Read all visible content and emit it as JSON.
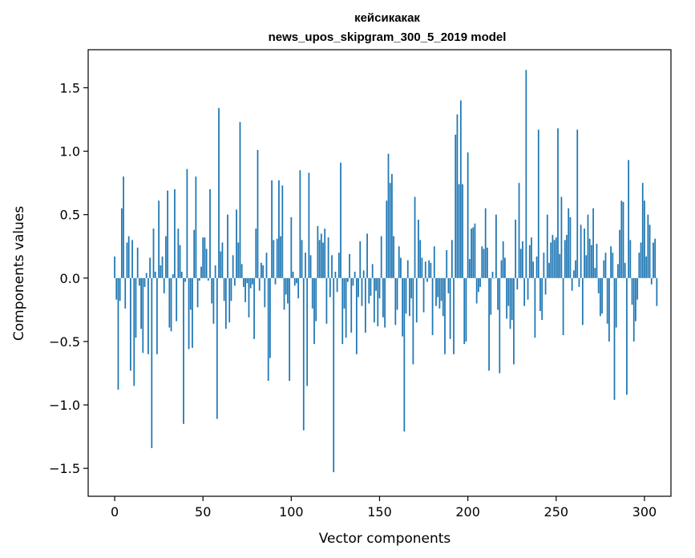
{
  "chart_data": {
    "type": "bar",
    "title": "кейсикакак",
    "subtitle": "news_upos_skipgram_300_5_2019 model",
    "xlabel": "Vector components",
    "ylabel": "Components values",
    "xlim": [
      -15,
      315
    ],
    "ylim": [
      -1.72,
      1.8
    ],
    "xticks": [
      0,
      50,
      100,
      150,
      200,
      250,
      300
    ],
    "yticks": [
      -1.5,
      -1.0,
      -0.5,
      0.0,
      0.5,
      1.0,
      1.5
    ],
    "ytick_labels": [
      "−1.5",
      "−1.0",
      "−0.5",
      "0.0",
      "0.5",
      "1.0",
      "1.5"
    ],
    "grid": false,
    "bar_color": "#1f77b4",
    "x_start": 0,
    "values": [
      0.17,
      -0.17,
      -0.88,
      -0.18,
      0.55,
      0.8,
      -0.24,
      0.28,
      0.33,
      -0.73,
      0.3,
      -0.85,
      -0.47,
      0.24,
      -0.06,
      -0.4,
      -0.59,
      -0.07,
      0.04,
      -0.6,
      0.16,
      -1.34,
      0.39,
      0.05,
      -0.6,
      0.61,
      0.1,
      0.17,
      -0.12,
      0.33,
      0.69,
      -0.39,
      -0.42,
      0.03,
      0.7,
      -0.34,
      0.39,
      0.26,
      0.05,
      -1.15,
      -0.03,
      0.86,
      -0.56,
      -0.25,
      -0.55,
      0.38,
      0.8,
      -0.23,
      -0.02,
      0.09,
      0.32,
      0.32,
      0.23,
      -0.02,
      0.7,
      -0.2,
      -0.36,
      0.1,
      -1.11,
      1.34,
      0.21,
      0.28,
      -0.18,
      -0.4,
      0.5,
      -0.35,
      -0.18,
      0.18,
      -0.06,
      0.54,
      0.28,
      1.23,
      0.11,
      -0.07,
      -0.19,
      -0.04,
      -0.31,
      -0.08,
      -0.05,
      -0.48,
      0.39,
      1.01,
      -0.1,
      0.12,
      0.1,
      -0.23,
      0.2,
      -0.81,
      -0.63,
      0.77,
      0.3,
      -0.05,
      0.31,
      0.77,
      0.33,
      0.73,
      -0.25,
      -0.13,
      -0.2,
      -0.81,
      0.48,
      0.05,
      -0.06,
      -0.04,
      -0.16,
      0.85,
      0.3,
      -1.2,
      0.2,
      -0.85,
      0.83,
      0.18,
      -0.24,
      -0.52,
      -0.34,
      0.41,
      0.3,
      0.35,
      0.28,
      0.39,
      -0.36,
      0.32,
      -0.15,
      0.18,
      -1.53,
      0.05,
      -0.11,
      0.2,
      0.91,
      -0.52,
      -0.24,
      -0.47,
      -0.03,
      0.19,
      -0.43,
      -0.06,
      0.05,
      -0.6,
      -0.15,
      0.29,
      -0.22,
      0.06,
      -0.43,
      0.35,
      -0.2,
      -0.14,
      0.11,
      -0.35,
      -0.1,
      -0.38,
      -0.16,
      0.33,
      -0.31,
      -0.39,
      0.61,
      0.98,
      0.75,
      0.82,
      0.33,
      -0.37,
      -0.25,
      0.25,
      0.16,
      -0.46,
      -1.21,
      -0.28,
      0.14,
      -0.3,
      -0.16,
      -0.68,
      0.64,
      -0.35,
      0.46,
      0.3,
      0.16,
      -0.27,
      0.13,
      -0.03,
      0.14,
      0.12,
      -0.45,
      0.25,
      -0.22,
      -0.15,
      -0.24,
      -0.18,
      -0.3,
      -0.6,
      0.22,
      -0.12,
      -0.48,
      0.3,
      -0.6,
      1.13,
      1.29,
      0.74,
      1.4,
      0.74,
      -0.52,
      -0.5,
      0.99,
      0.15,
      0.39,
      0.4,
      0.43,
      -0.2,
      -0.11,
      -0.07,
      0.25,
      0.23,
      0.55,
      0.24,
      -0.73,
      -0.29,
      0.05,
      0.0,
      0.5,
      -0.25,
      -0.75,
      0.14,
      0.29,
      0.16,
      -0.32,
      -0.22,
      -0.4,
      -0.33,
      -0.68,
      0.46,
      -0.09,
      0.75,
      0.23,
      0.29,
      -0.22,
      1.64,
      -0.17,
      0.26,
      0.32,
      0.13,
      -0.47,
      0.17,
      1.17,
      -0.26,
      -0.33,
      0.2,
      -0.13,
      0.5,
      0.12,
      0.28,
      0.34,
      0.3,
      0.32,
      1.18,
      0.19,
      0.64,
      -0.45,
      0.3,
      0.34,
      0.55,
      0.48,
      -0.1,
      0.06,
      0.14,
      1.17,
      -0.07,
      0.42,
      -0.37,
      0.39,
      0.18,
      0.5,
      0.31,
      0.26,
      0.55,
      0.08,
      0.27,
      -0.12,
      -0.3,
      -0.28,
      0.14,
      0.2,
      -0.36,
      -0.5,
      0.25,
      0.2,
      -0.96,
      -0.39,
      0.11,
      0.38,
      0.61,
      0.6,
      0.12,
      -0.92,
      0.93,
      0.3,
      -0.21,
      -0.5,
      -0.34,
      -0.17,
      0.2,
      0.28,
      0.75,
      0.61,
      0.17,
      0.5,
      0.42,
      -0.05,
      0.28,
      0.31,
      -0.22
    ]
  }
}
